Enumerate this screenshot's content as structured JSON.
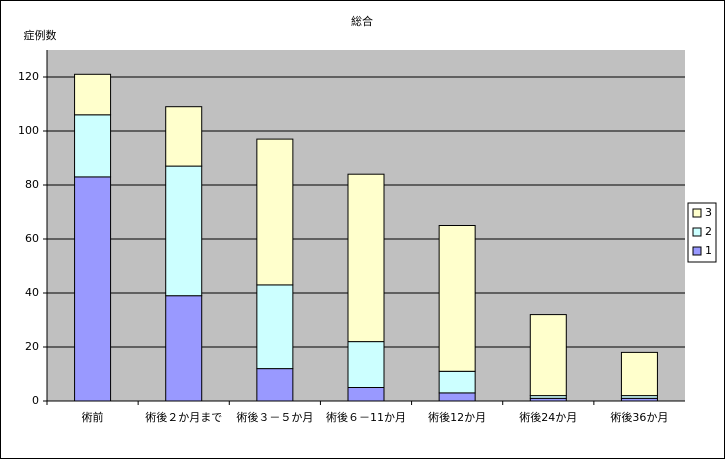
{
  "chart_data": {
    "type": "bar",
    "stacked": true,
    "title": "総合",
    "y_label": "症例数",
    "categories": [
      "術前",
      "術後２か月まで",
      "術後３－５か月",
      "術後６－11か月",
      "術後12か月",
      "術後24か月",
      "術後36か月"
    ],
    "series": [
      {
        "name": "1",
        "color": "#9999ff",
        "values": [
          83,
          39,
          12,
          5,
          3,
          1,
          1
        ]
      },
      {
        "name": "2",
        "color": "#ccffff",
        "values": [
          23,
          48,
          31,
          17,
          8,
          1,
          1
        ]
      },
      {
        "name": "3",
        "color": "#ffffcc",
        "values": [
          15,
          22,
          54,
          62,
          54,
          30,
          16
        ]
      }
    ],
    "ylim": [
      0,
      130
    ],
    "yticks": [
      0,
      20,
      40,
      60,
      80,
      100,
      120
    ],
    "grid": true,
    "legend": "right"
  }
}
